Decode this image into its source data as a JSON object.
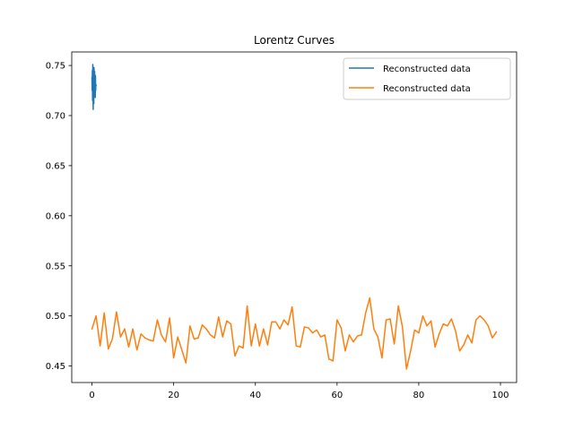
{
  "chart_data": {
    "type": "line",
    "title": "Lorentz Curves",
    "xlabel": "",
    "ylabel": "",
    "xlim": [
      -4.95,
      103.95
    ],
    "ylim": [
      0.4335,
      0.7635
    ],
    "x_ticks": [
      0,
      20,
      40,
      60,
      80,
      100
    ],
    "x_tick_labels": [
      "0",
      "20",
      "40",
      "60",
      "80",
      "100"
    ],
    "y_ticks": [
      0.45,
      0.5,
      0.55,
      0.6,
      0.65,
      0.7,
      0.75
    ],
    "y_tick_labels": [
      "0.45",
      "0.50",
      "0.55",
      "0.60",
      "0.65",
      "0.70",
      "0.75"
    ],
    "grid": false,
    "legend_position": "top-right",
    "series": [
      {
        "name": "Reconstructed data",
        "color": "#1f77b4",
        "x": [
          0.0,
          0.05,
          0.1,
          0.15,
          0.2,
          0.25,
          0.3,
          0.35,
          0.4,
          0.45,
          0.5,
          0.55,
          0.6,
          0.65,
          0.7,
          0.75,
          0.8,
          0.85,
          0.9,
          0.95,
          1.0
        ],
        "y": [
          0.738,
          0.725,
          0.745,
          0.715,
          0.751,
          0.728,
          0.706,
          0.742,
          0.73,
          0.712,
          0.748,
          0.735,
          0.72,
          0.744,
          0.727,
          0.733,
          0.718,
          0.74,
          0.725,
          0.731,
          0.73
        ]
      },
      {
        "name": "Reconstructed data",
        "color": "#ff7f0e",
        "x": [
          0,
          1,
          2,
          3,
          4,
          5,
          6,
          7,
          8,
          9,
          10,
          11,
          12,
          13,
          14,
          15,
          16,
          17,
          18,
          19,
          20,
          21,
          22,
          23,
          24,
          25,
          26,
          27,
          28,
          29,
          30,
          31,
          32,
          33,
          34,
          35,
          36,
          37,
          38,
          39,
          40,
          41,
          42,
          43,
          44,
          45,
          46,
          47,
          48,
          49,
          50,
          51,
          52,
          53,
          54,
          55,
          56,
          57,
          58,
          59,
          60,
          61,
          62,
          63,
          64,
          65,
          66,
          67,
          68,
          69,
          70,
          71,
          72,
          73,
          74,
          75,
          76,
          77,
          78,
          79,
          80,
          81,
          82,
          83,
          84,
          85,
          86,
          87,
          88,
          89,
          90,
          91,
          92,
          93,
          94,
          95,
          96,
          97,
          98,
          99
        ],
        "y": [
          0.487,
          0.5,
          0.47,
          0.503,
          0.467,
          0.477,
          0.504,
          0.479,
          0.487,
          0.469,
          0.487,
          0.466,
          0.482,
          0.478,
          0.476,
          0.475,
          0.496,
          0.481,
          0.474,
          0.498,
          0.458,
          0.479,
          0.466,
          0.453,
          0.49,
          0.477,
          0.478,
          0.491,
          0.487,
          0.481,
          0.478,
          0.499,
          0.479,
          0.495,
          0.492,
          0.46,
          0.47,
          0.468,
          0.51,
          0.47,
          0.492,
          0.47,
          0.487,
          0.471,
          0.494,
          0.494,
          0.487,
          0.496,
          0.491,
          0.509,
          0.47,
          0.469,
          0.489,
          0.488,
          0.483,
          0.486,
          0.479,
          0.481,
          0.457,
          0.455,
          0.496,
          0.488,
          0.465,
          0.481,
          0.474,
          0.48,
          0.481,
          0.503,
          0.518,
          0.487,
          0.479,
          0.458,
          0.496,
          0.497,
          0.472,
          0.51,
          0.489,
          0.447,
          0.465,
          0.486,
          0.483,
          0.5,
          0.49,
          0.495,
          0.469,
          0.482,
          0.492,
          0.49,
          0.497,
          0.485,
          0.465,
          0.471,
          0.481,
          0.473,
          0.496,
          0.5,
          0.496,
          0.49,
          0.478,
          0.484
        ]
      }
    ]
  }
}
